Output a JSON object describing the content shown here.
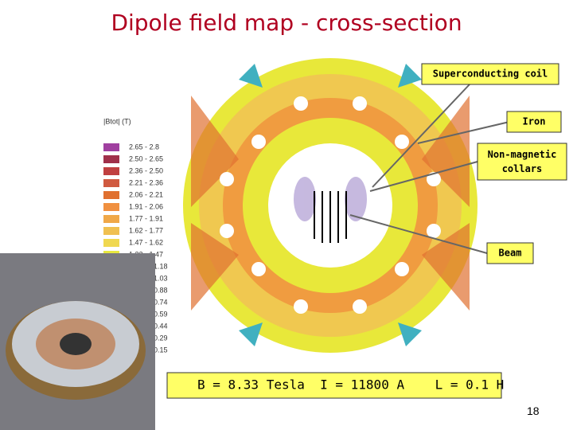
{
  "title": "Dipole field map - cross-section",
  "legend": {
    "heading": "|Btot| (T)",
    "items": [
      "2.65 - 2.8",
      "2.50 - 2.65",
      "2.36 - 2.50",
      "2.21 - 2.36",
      "2.06 - 2.21",
      "1.91 - 2.06",
      "1.77 - 1.91",
      "1.62 - 1.77",
      "1.47 - 1.62",
      "1.32 - 1.47",
      "1.18",
      "1.03",
      "0.88",
      "0.74",
      "0.59",
      "0.44",
      "0.29",
      "0.15"
    ]
  },
  "callouts": [
    "Superconducting coil",
    "Iron",
    "Non-magnetic collars",
    "Beam"
  ],
  "formula": "B = 8.33 Tesla  I = 11800 A    L = 0.1 H",
  "page_number": "18"
}
